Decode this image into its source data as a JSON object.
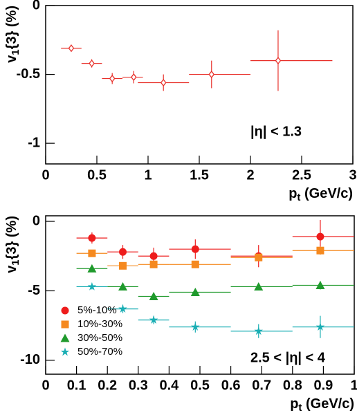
{
  "chart_data": [
    {
      "type": "scatter",
      "xlabel": {
        "main": "p",
        "sub": "t",
        "rest": " (GeV/c)"
      },
      "ylabel": {
        "main": "v",
        "sub": "1",
        "rest": "{3} (%)"
      },
      "annotation": "|η| < 1.3",
      "xlim": [
        0,
        3
      ],
      "ylim": [
        -1.15,
        0
      ],
      "xticks": [
        0,
        0.5,
        1,
        1.5,
        2,
        2.5,
        3
      ],
      "yticks": [
        0,
        -0.5,
        -1
      ],
      "series": [
        {
          "color": "#e8302a",
          "marker": "open-diamond",
          "x": [
            0.25,
            0.45,
            0.65,
            0.86,
            1.15,
            1.62,
            2.27
          ],
          "values": [
            -0.31,
            -0.42,
            -0.53,
            -0.52,
            -0.56,
            -0.5,
            -0.4
          ],
          "yerr": [
            0.025,
            0.03,
            0.04,
            0.045,
            0.06,
            0.1,
            0.22
          ],
          "x_low": [
            0.15,
            0.35,
            0.55,
            0.75,
            0.9,
            1.4,
            2.0
          ],
          "x_high": [
            0.35,
            0.55,
            0.75,
            0.95,
            1.4,
            2.0,
            2.8
          ]
        }
      ]
    },
    {
      "type": "scatter",
      "xlabel": {
        "main": "p",
        "sub": "t",
        "rest": " (GeV/c)"
      },
      "ylabel": {
        "main": "v",
        "sub": "1",
        "rest": "{3} (%)"
      },
      "annotation": "2.5 < |η| < 4",
      "xlim": [
        0,
        1
      ],
      "ylim": [
        -11,
        0.4
      ],
      "xticks": [
        0,
        0.1,
        0.2,
        0.3,
        0.4,
        0.5,
        0.6,
        0.7,
        0.8,
        0.9,
        1
      ],
      "yticks": [
        0,
        -5,
        -10
      ],
      "legend": "lower left",
      "series": [
        {
          "name": "5%-10%",
          "color": "#ee1c1c",
          "marker": "circle",
          "x": [
            0.15,
            0.25,
            0.35,
            0.485,
            0.69,
            0.89
          ],
          "values": [
            -1.2,
            -2.2,
            -2.5,
            -2.0,
            -2.5,
            -1.1
          ],
          "yerr": [
            0.4,
            0.5,
            0.6,
            0.7,
            0.8,
            1.2
          ],
          "x_low": [
            0.1,
            0.2,
            0.3,
            0.4,
            0.6,
            0.8
          ],
          "x_high": [
            0.2,
            0.3,
            0.4,
            0.6,
            0.8,
            1.0
          ]
        },
        {
          "name": "10%-30%",
          "color": "#f5891f",
          "marker": "square",
          "x": [
            0.15,
            0.25,
            0.35,
            0.485,
            0.69,
            0.89
          ],
          "values": [
            -2.3,
            -3.2,
            -3.1,
            -3.1,
            -2.6,
            -2.1
          ],
          "yerr": [
            0.15,
            0.2,
            0.2,
            0.2,
            0.25,
            0.3
          ],
          "x_low": [
            0.1,
            0.2,
            0.3,
            0.4,
            0.6,
            0.8
          ],
          "x_high": [
            0.2,
            0.3,
            0.4,
            0.6,
            0.8,
            1.0
          ]
        },
        {
          "name": "30%-50%",
          "color": "#1f9a2c",
          "marker": "triangle",
          "x": [
            0.15,
            0.25,
            0.35,
            0.485,
            0.69,
            0.89
          ],
          "values": [
            -3.4,
            -4.7,
            -5.4,
            -5.1,
            -4.7,
            -4.6
          ],
          "yerr": [
            0.15,
            0.2,
            0.2,
            0.2,
            0.25,
            0.3
          ],
          "x_low": [
            0.1,
            0.2,
            0.3,
            0.4,
            0.6,
            0.8
          ],
          "x_high": [
            0.2,
            0.3,
            0.4,
            0.6,
            0.8,
            1.0
          ]
        },
        {
          "name": "50%-70%",
          "color": "#1aaeb4",
          "marker": "star",
          "x": [
            0.15,
            0.25,
            0.35,
            0.485,
            0.69,
            0.89
          ],
          "values": [
            -4.7,
            -6.3,
            -7.1,
            -7.6,
            -7.9,
            -7.6
          ],
          "yerr": [
            0.2,
            0.3,
            0.3,
            0.4,
            0.5,
            0.8
          ],
          "x_low": [
            0.1,
            0.2,
            0.3,
            0.4,
            0.6,
            0.8
          ],
          "x_high": [
            0.2,
            0.3,
            0.4,
            0.6,
            0.8,
            1.0
          ]
        }
      ]
    }
  ]
}
